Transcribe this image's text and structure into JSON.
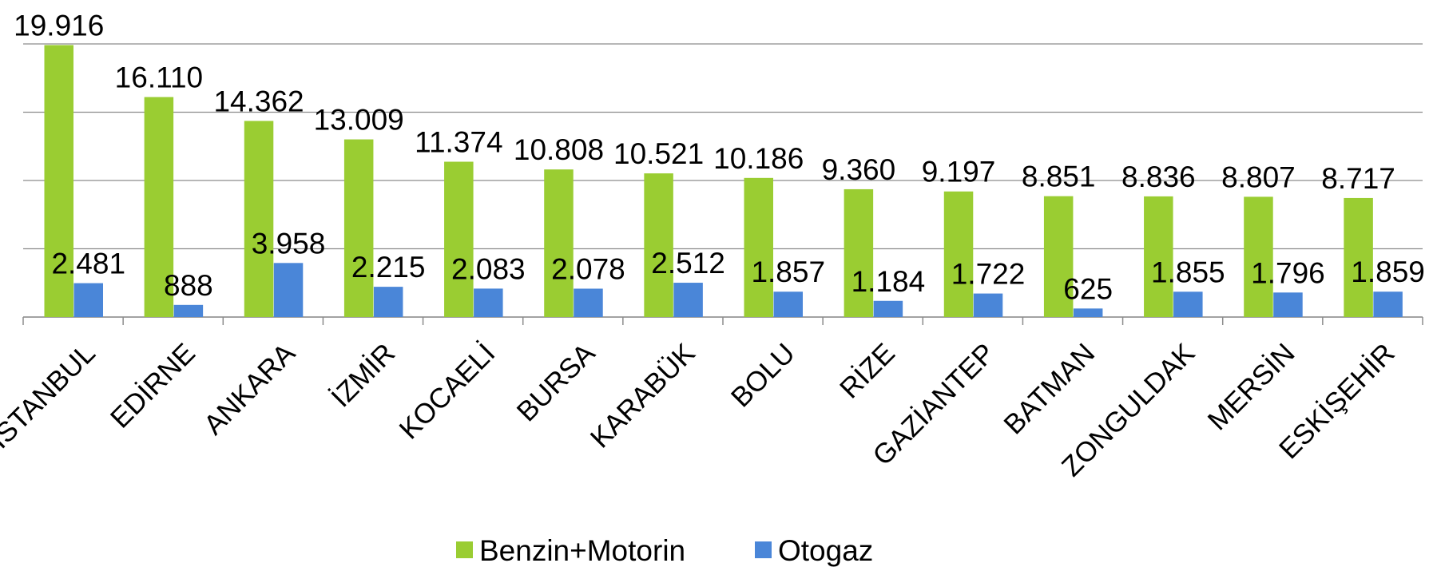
{
  "chart_data": {
    "type": "bar",
    "categories": [
      "İSTANBUL",
      "EDİRNE",
      "ANKARA",
      "İZMİR",
      "KOCAELİ",
      "BURSA",
      "KARABÜK",
      "BOLU",
      "RİZE",
      "GAZİANTEP",
      "BATMAN",
      "ZONGULDAK",
      "MERSİN",
      "ESKİŞEHİR"
    ],
    "series": [
      {
        "name": "Benzin+Motorin",
        "color": "#9acd32",
        "values": [
          19916,
          16110,
          14362,
          13009,
          11374,
          10808,
          10521,
          10186,
          9360,
          9197,
          8851,
          8836,
          8807,
          8717
        ],
        "value_labels": [
          "19.916",
          "16.110",
          "14.362",
          "13.009",
          "11.374",
          "10.808",
          "10.521",
          "10.186",
          "9.360",
          "9.197",
          "8.851",
          "8.836",
          "8.807",
          "8.717"
        ]
      },
      {
        "name": "Otogaz",
        "color": "#4a86d8",
        "values": [
          2481,
          888,
          3958,
          2215,
          2083,
          2078,
          2512,
          1857,
          1184,
          1722,
          625,
          1855,
          1796,
          1859
        ],
        "value_labels": [
          "2.481",
          "888",
          "3.958",
          "2.215",
          "2.083",
          "2.078",
          "2.512",
          "1.857",
          "1.184",
          "1.722",
          "625",
          "1.855",
          "1.796",
          "1.859"
        ]
      }
    ],
    "ylim": [
      0,
      20000
    ],
    "yticks": [
      0,
      5000,
      10000,
      15000,
      20000
    ],
    "grid": true,
    "legend": "bottom"
  }
}
